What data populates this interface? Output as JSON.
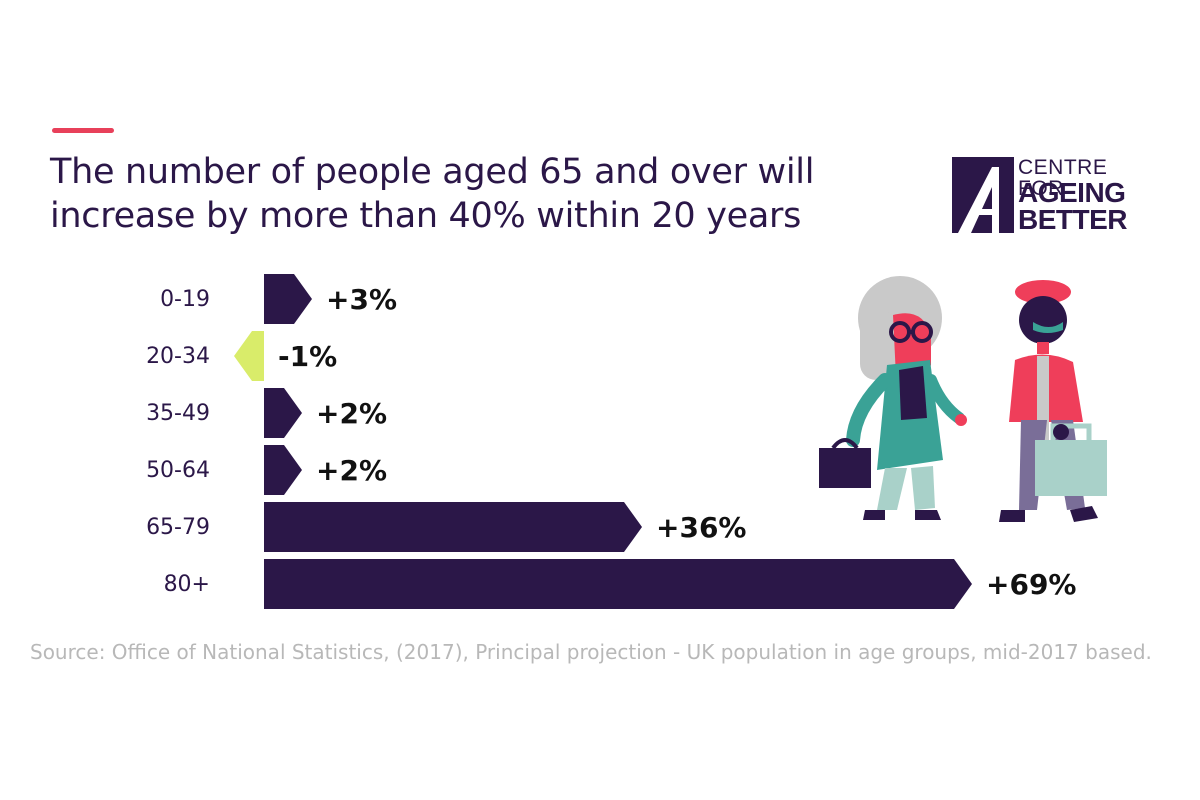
{
  "title": {
    "line1": "The number of people aged 65 and over will",
    "line2": "increase by more than 40% within 20 years"
  },
  "logo": {
    "line1": "CENTRE FOR",
    "line2": "AGEING",
    "line3": "BETTER"
  },
  "colors": {
    "accent": "#e8405a",
    "primary": "#2b1748",
    "negative": "#d9ec6a",
    "source_text": "#b8b8b8",
    "figure_red": "#ef3e5a",
    "figure_teal": "#3aa296",
    "figure_mint": "#a9d1c9",
    "figure_grey": "#c9c9c9",
    "figure_purple": "#7a6e98"
  },
  "chart_data": {
    "type": "bar",
    "orientation": "horizontal",
    "categories": [
      "0-19",
      "20-34",
      "35-49",
      "50-64",
      "65-79",
      "80+"
    ],
    "values": [
      3,
      -1,
      2,
      2,
      36,
      69
    ],
    "data_labels": [
      "+3%",
      "-1%",
      "+2%",
      "+2%",
      "+36%",
      "+69%"
    ],
    "unit": "%",
    "grid": false,
    "legend": "none"
  },
  "source": "Source: Office of National Statistics, (2017), Principal projection - UK population in age groups, mid-2017 based."
}
